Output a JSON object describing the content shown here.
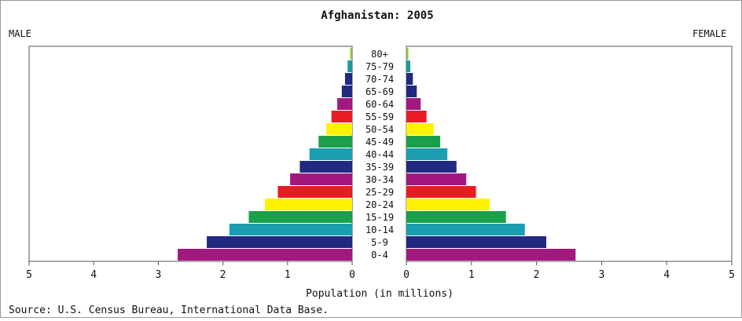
{
  "chart_data": {
    "type": "bar",
    "subtype": "population-pyramid",
    "title": "Afghanistan: 2005",
    "left_label": "MALE",
    "right_label": "FEMALE",
    "xlabel": "Population (in millions)",
    "source": "Source: U.S. Census Bureau, International Data Base.",
    "xlim": [
      0,
      5
    ],
    "ticks": [
      "5",
      "4",
      "3",
      "2",
      "1",
      "0",
      "0",
      "1",
      "2",
      "3",
      "4",
      "5"
    ],
    "categories": [
      "80+",
      "75-79",
      "70-74",
      "65-69",
      "60-64",
      "55-59",
      "50-54",
      "45-49",
      "40-44",
      "35-39",
      "30-34",
      "25-29",
      "20-24",
      "15-19",
      "10-14",
      "5-9",
      "0-4"
    ],
    "colors": [
      "#8cc63e",
      "#1a9a9a",
      "#1f2a80",
      "#1f2a80",
      "#a3187e",
      "#e81c24",
      "#fff200",
      "#1aa04a",
      "#1a9eb0",
      "#1f2a80",
      "#a3187e",
      "#e81c24",
      "#fff200",
      "#1aa04a",
      "#1a9eb0",
      "#1f2a80",
      "#a3187e"
    ],
    "series": [
      {
        "name": "MALE",
        "values": [
          0.03,
          0.07,
          0.11,
          0.16,
          0.23,
          0.32,
          0.4,
          0.52,
          0.66,
          0.81,
          0.96,
          1.15,
          1.35,
          1.6,
          1.9,
          2.25,
          2.7
        ]
      },
      {
        "name": "FEMALE",
        "values": [
          0.03,
          0.06,
          0.1,
          0.16,
          0.22,
          0.31,
          0.42,
          0.52,
          0.63,
          0.77,
          0.92,
          1.07,
          1.28,
          1.53,
          1.82,
          2.15,
          2.6
        ]
      }
    ],
    "grid": false
  }
}
